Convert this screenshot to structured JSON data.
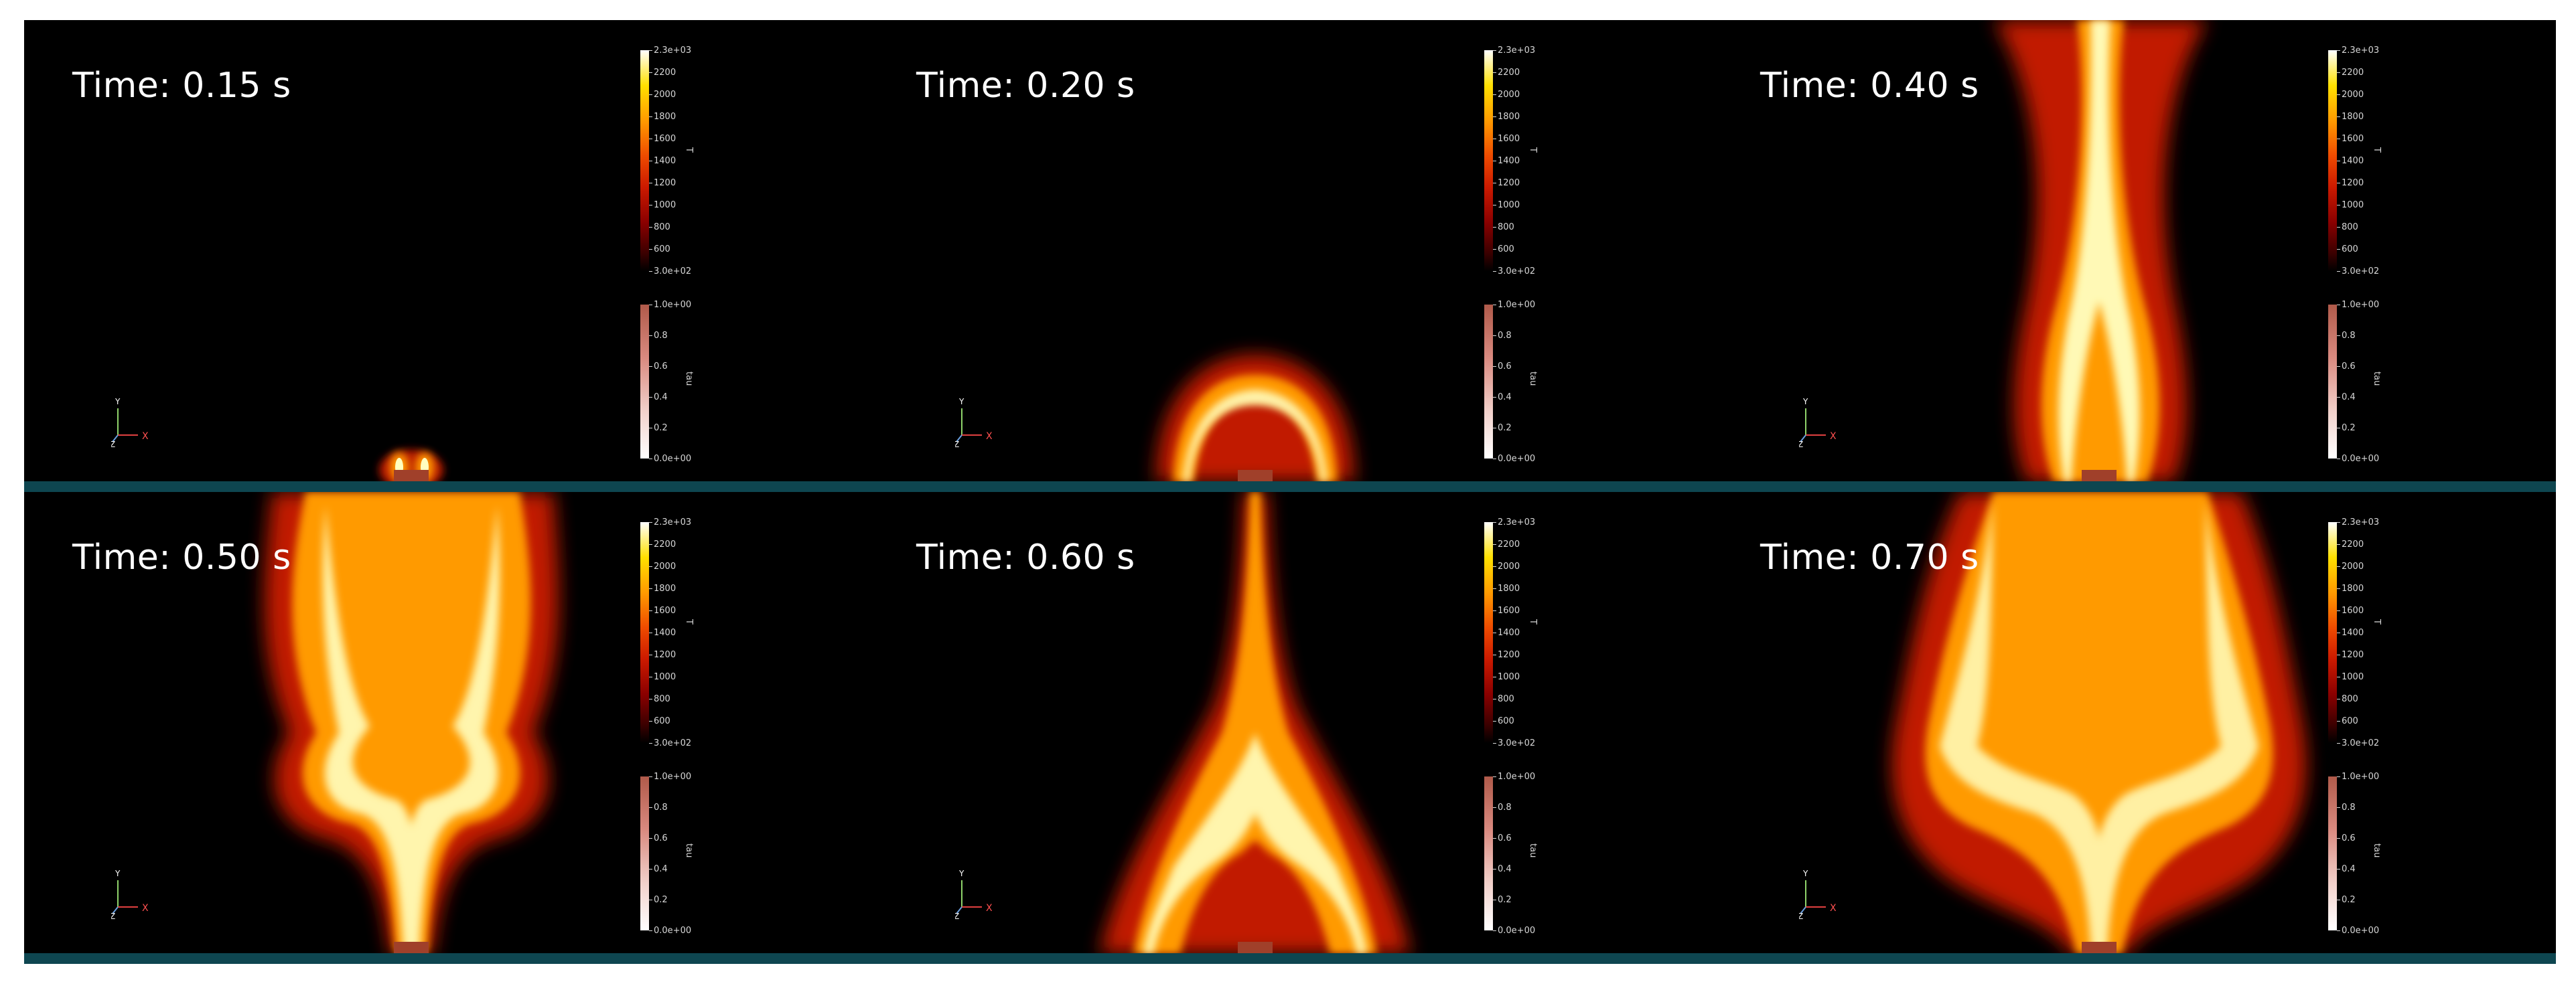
{
  "panels": [
    {
      "time_label": "Time: 0.15 s",
      "stage": 0.15
    },
    {
      "time_label": "Time: 0.20 s",
      "stage": 0.2
    },
    {
      "time_label": "Time: 0.40 s",
      "stage": 0.4
    },
    {
      "time_label": "Time: 0.50 s",
      "stage": 0.5
    },
    {
      "time_label": "Time: 0.60 s",
      "stage": 0.6
    },
    {
      "time_label": "Time: 0.70 s",
      "stage": 0.7
    }
  ],
  "colorbar_temperature": {
    "title": "T",
    "ticks": [
      "2.3e+03",
      "2200",
      "2000",
      "1800",
      "1600",
      "1400",
      "1200",
      "1000",
      "800",
      "600",
      "3.0e+02"
    ]
  },
  "colorbar_tau": {
    "title": "tau",
    "ticks": [
      "1.0e+00",
      "0.8",
      "0.6",
      "0.4",
      "0.2",
      "0.0e+00"
    ]
  },
  "axes_triad": {
    "y_label": "Y",
    "z_label": "Z",
    "x_label": "X"
  },
  "colors": {
    "background": "#000000",
    "ground": "#0e4650",
    "burner": "#a0402a",
    "flame_core": "#ffffc0",
    "flame_mid": "#ff9a00",
    "flame_outer": "#cc1a00"
  }
}
